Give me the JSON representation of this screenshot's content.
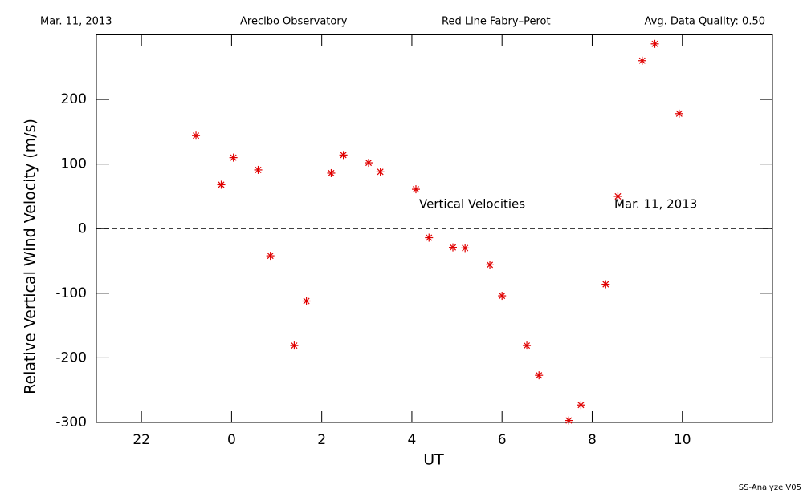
{
  "chart_data": {
    "type": "scatter",
    "header": [
      "Mar. 11, 2013",
      "Arecibo Observatory",
      "Red Line Fabry–Perot",
      "Avg. Data Quality: 0.50"
    ],
    "annotations": [
      "Vertical Velocities",
      "Mar. 11, 2013"
    ],
    "footer": "SS-Analyze V05",
    "xlabel": "UT",
    "ylabel": "Relative Vertical Wind Velocity (m/s)",
    "xlim": [
      -3,
      12
    ],
    "ylim": [
      -300,
      300
    ],
    "xticks": [
      {
        "value": -2,
        "label": "22"
      },
      0,
      2,
      4,
      6,
      8,
      10
    ],
    "yticks": [
      -300,
      -200,
      -100,
      0,
      100,
      200
    ],
    "reference_line": 0,
    "series": [
      {
        "color": "#e00000",
        "x": [
          -0.79,
          -0.23,
          0.04,
          0.59,
          0.86,
          1.39,
          1.66,
          2.21,
          2.48,
          3.04,
          3.3,
          4.09,
          4.38,
          4.91,
          5.18,
          5.73,
          6.0,
          6.55,
          6.82,
          7.48,
          7.75,
          8.3,
          8.57,
          9.11,
          9.39,
          9.93
        ],
        "values": [
          144,
          68,
          110,
          91,
          -42,
          -181,
          -112,
          86,
          114,
          102,
          88,
          61,
          -14,
          -29,
          -30,
          -56,
          -104,
          -181,
          -227,
          -297,
          -273,
          -86,
          50,
          260,
          286,
          178
        ]
      }
    ]
  }
}
